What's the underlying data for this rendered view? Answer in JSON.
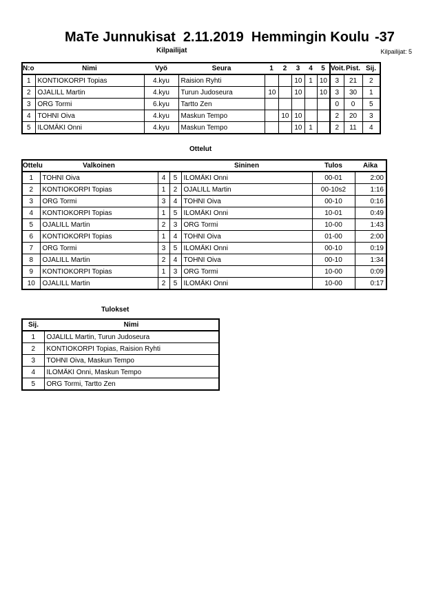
{
  "header": {
    "title": "MaTe Junnukisat  2.11.2019  Hemmingin Koulu",
    "category": "-37",
    "count_label": "Kilpailijat: 5"
  },
  "competitors": {
    "section_title": "Kilpailijat",
    "columns": [
      "N:o",
      "Nimi",
      "Vyö",
      "Seura",
      "1",
      "2",
      "3",
      "4",
      "5",
      "Voit.",
      "Pist.",
      "Sij."
    ],
    "rows": [
      [
        "1",
        "KONTIOKORPI Topias",
        "4.kyu",
        "Raision Ryhti",
        "",
        "",
        "10",
        "1",
        "10",
        "3",
        "21",
        "2"
      ],
      [
        "2",
        "OJALILL Martin",
        "4.kyu",
        "Turun Judoseura",
        "10",
        "",
        "10",
        "",
        "10",
        "3",
        "30",
        "1"
      ],
      [
        "3",
        "ORG Tormi",
        "6.kyu",
        "Tartto Zen",
        "",
        "",
        "",
        "",
        "",
        "0",
        "0",
        "5"
      ],
      [
        "4",
        "TOHNI Oiva",
        "4.kyu",
        "Maskun Tempo",
        "",
        "10",
        "10",
        "",
        "",
        "2",
        "20",
        "3"
      ],
      [
        "5",
        "ILOMÄKI Onni",
        "4.kyu",
        "Maskun Tempo",
        "",
        "",
        "10",
        "1",
        "",
        "2",
        "11",
        "4"
      ]
    ]
  },
  "matches": {
    "section_title": "Ottelut",
    "columns": [
      "Ottelu",
      "Valkoinen",
      "Sininen",
      "Tulos",
      "Aika"
    ],
    "rows": [
      [
        "1",
        "TOHNI Oiva",
        "4",
        "5",
        "ILOMÄKI Onni",
        "00-01",
        "2:00"
      ],
      [
        "2",
        "KONTIOKORPI Topias",
        "1",
        "2",
        "OJALILL Martin",
        "00-10s2",
        "1:16"
      ],
      [
        "3",
        "ORG Tormi",
        "3",
        "4",
        "TOHNI Oiva",
        "00-10",
        "0:16"
      ],
      [
        "4",
        "KONTIOKORPI Topias",
        "1",
        "5",
        "ILOMÄKI Onni",
        "10-01",
        "0:49"
      ],
      [
        "5",
        "OJALILL Martin",
        "2",
        "3",
        "ORG Tormi",
        "10-00",
        "1:43"
      ],
      [
        "6",
        "KONTIOKORPI Topias",
        "1",
        "4",
        "TOHNI Oiva",
        "01-00",
        "2:00"
      ],
      [
        "7",
        "ORG Tormi",
        "3",
        "5",
        "ILOMÄKI Onni",
        "00-10",
        "0:19"
      ],
      [
        "8",
        "OJALILL Martin",
        "2",
        "4",
        "TOHNI Oiva",
        "00-10",
        "1:34"
      ],
      [
        "9",
        "KONTIOKORPI Topias",
        "1",
        "3",
        "ORG Tormi",
        "10-00",
        "0:09"
      ],
      [
        "10",
        "OJALILL Martin",
        "2",
        "5",
        "ILOMÄKI Onni",
        "10-00",
        "0:17"
      ]
    ]
  },
  "results": {
    "section_title": "Tulokset",
    "columns": [
      "Sij.",
      "Nimi"
    ],
    "rows": [
      [
        "1",
        "OJALILL Martin, Turun Judoseura"
      ],
      [
        "2",
        "KONTIOKORPI Topias, Raision Ryhti"
      ],
      [
        "3",
        "TOHNI Oiva, Maskun Tempo"
      ],
      [
        "4",
        "ILOMÄKI Onni, Maskun Tempo"
      ],
      [
        "5",
        "ORG Tormi, Tartto Zen"
      ]
    ]
  }
}
